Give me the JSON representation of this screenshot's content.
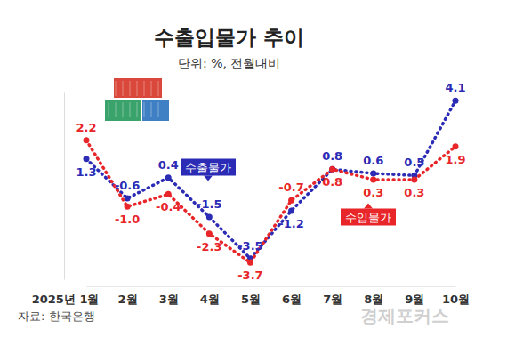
{
  "chart_data": {
    "type": "line",
    "title": "수출입물가 추이",
    "subtitle": "단위: %, 전월대비",
    "source": "자료: 한국은행",
    "watermark": "경제포커스",
    "categories": [
      "2025년 1월",
      "2월",
      "3월",
      "4월",
      "5월",
      "6월",
      "7월",
      "8월",
      "9월",
      "10월"
    ],
    "series": [
      {
        "name": "수출물가",
        "color": "#2b2bb5",
        "marker": "circle",
        "line_style": "dotted",
        "values": [
          1.3,
          -0.6,
          0.4,
          -1.5,
          -3.5,
          -1.2,
          0.8,
          0.6,
          0.5,
          4.1
        ],
        "value_labels": [
          "1.3",
          "-0.6",
          "0.4",
          "-1.5",
          "-3.5",
          "-1.2",
          "0.8",
          "0.6",
          "0.5",
          "4.1"
        ]
      },
      {
        "name": "수입물가",
        "color": "#e8262a",
        "marker": "circle",
        "line_style": "dotted",
        "values": [
          2.2,
          -1.0,
          -0.4,
          -2.3,
          -3.7,
          -0.7,
          0.8,
          0.3,
          0.3,
          1.9
        ],
        "value_labels": [
          "2.2",
          "-1.0",
          "-0.4",
          "-2.3",
          "-3.7",
          "-0.7",
          "0.8",
          "0.3",
          "0.3",
          "1.9"
        ]
      }
    ],
    "ylim": [
      -4.5,
      4.5
    ],
    "yticks": [],
    "grid": false,
    "data_labels": true,
    "tick_labels": "x"
  }
}
